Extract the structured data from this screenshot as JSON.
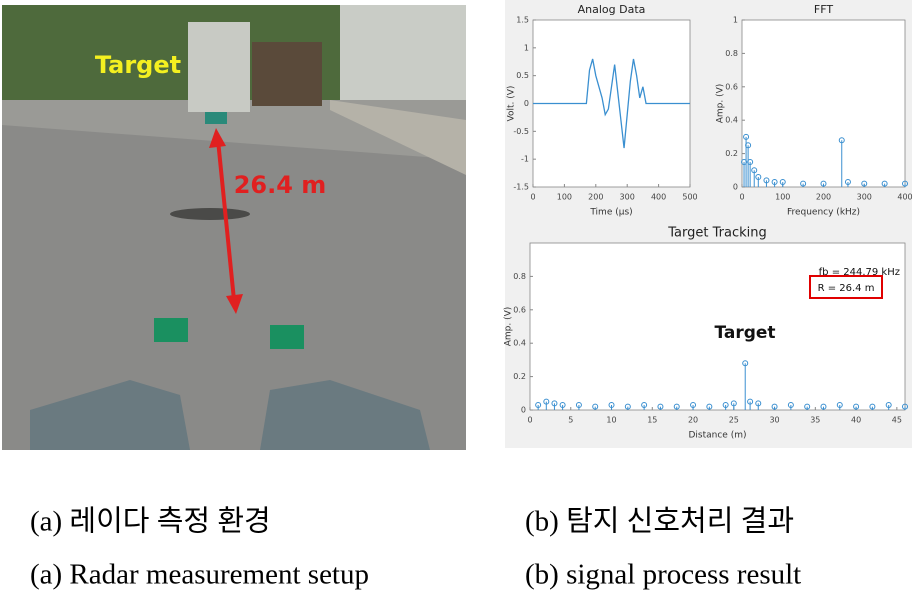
{
  "photo": {
    "target_label": "Target",
    "distance_label": "26.4 m"
  },
  "chart_data": [
    {
      "type": "line",
      "title": "Analog Data",
      "xlabel": "Time (μs)",
      "ylabel": "Volt. (V)",
      "color": "#3a8fd0",
      "x": [
        0,
        170,
        180,
        190,
        200,
        210,
        220,
        230,
        240,
        250,
        260,
        270,
        280,
        290,
        300,
        310,
        320,
        330,
        340,
        350,
        360,
        500
      ],
      "values": [
        0,
        0,
        0.6,
        0.8,
        0.5,
        0.3,
        0.1,
        -0.2,
        -0.1,
        0.3,
        0.7,
        0.2,
        -0.3,
        -0.8,
        -0.2,
        0.4,
        0.8,
        0.5,
        0.1,
        0.3,
        0,
        0
      ],
      "xlim": [
        0,
        500
      ],
      "xticks": [
        0,
        100,
        200,
        300,
        400,
        500
      ],
      "ylim": [
        -1.5,
        1.5
      ],
      "yticks": [
        -1.5,
        -1,
        -0.5,
        0,
        0.5,
        1,
        1.5
      ]
    },
    {
      "type": "stem",
      "title": "FFT",
      "xlabel": "Frequency (kHz)",
      "ylabel": "Amp. (V)",
      "color": "#3a8fd0",
      "x": [
        5,
        10,
        15,
        20,
        30,
        40,
        60,
        80,
        100,
        150,
        200,
        244.79,
        260,
        300,
        350,
        400
      ],
      "values": [
        0.15,
        0.3,
        0.25,
        0.15,
        0.1,
        0.06,
        0.04,
        0.03,
        0.03,
        0.02,
        0.02,
        0.28,
        0.03,
        0.02,
        0.02,
        0.02
      ],
      "xlim": [
        0,
        400
      ],
      "xticks": [
        0,
        100,
        200,
        300,
        400
      ],
      "ylim": [
        0,
        1
      ],
      "yticks": [
        0,
        0.2,
        0.4,
        0.6,
        0.8,
        1
      ]
    },
    {
      "type": "stem",
      "title": "Target Tracking",
      "xlabel": "Distance (m)",
      "ylabel": "Amp. (V)",
      "color": "#3a8fd0",
      "annotations": [
        "fb = 244.79 kHz",
        "R = 26.4 m",
        "Target"
      ],
      "x": [
        1,
        2,
        3,
        4,
        6,
        8,
        10,
        12,
        14,
        16,
        18,
        20,
        22,
        24,
        25,
        26.4,
        27,
        28,
        30,
        32,
        34,
        36,
        38,
        40,
        42,
        44,
        46
      ],
      "values": [
        0.03,
        0.05,
        0.04,
        0.03,
        0.03,
        0.02,
        0.03,
        0.02,
        0.03,
        0.02,
        0.02,
        0.03,
        0.02,
        0.03,
        0.04,
        0.28,
        0.05,
        0.04,
        0.02,
        0.03,
        0.02,
        0.02,
        0.03,
        0.02,
        0.02,
        0.03,
        0.02
      ],
      "xlim": [
        0,
        46
      ],
      "xticks": [
        0,
        5,
        10,
        15,
        20,
        25,
        30,
        35,
        40,
        45
      ],
      "ylim": [
        0,
        1
      ],
      "yticks": [
        0,
        0.2,
        0.4,
        0.6,
        0.8
      ]
    }
  ],
  "captions": {
    "a_korean": "(a) 레이다 측정 환경",
    "a_english": "(a) Radar measurement setup",
    "b_korean": "(b) 탐지 신호처리 결과",
    "b_english": "(b) signal process result"
  }
}
